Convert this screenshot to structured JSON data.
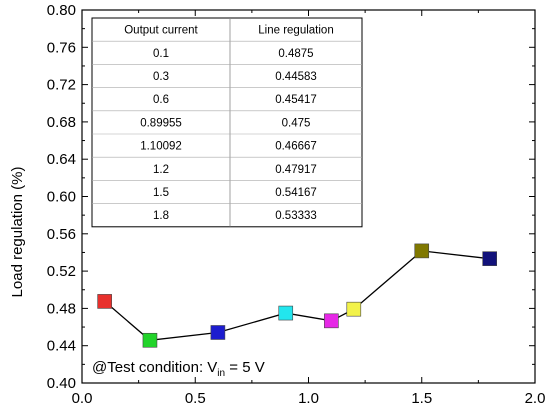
{
  "chart_data": {
    "type": "line",
    "xlabel": "",
    "ylabel": "Load regulation (%)",
    "xlim": [
      0.0,
      2.0
    ],
    "ylim": [
      0.4,
      0.8
    ],
    "x_ticks": [
      "0.0",
      "0.5",
      "1.0",
      "1.5",
      "2.0"
    ],
    "y_ticks": [
      "0.40",
      "0.44",
      "0.48",
      "0.52",
      "0.56",
      "0.60",
      "0.64",
      "0.68",
      "0.72",
      "0.76",
      "0.80"
    ],
    "grid": false,
    "series": [
      {
        "x": [
          0.1,
          0.3,
          0.6,
          0.89955,
          1.10092,
          1.2,
          1.5,
          1.8
        ],
        "y": [
          0.4875,
          0.44583,
          0.45417,
          0.475,
          0.46667,
          0.47917,
          0.54167,
          0.53333
        ],
        "marker_colors": [
          "#e8302c",
          "#22d42a",
          "#1c1ccf",
          "#22e6ee",
          "#e628e6",
          "#f2f24a",
          "#807800",
          "#12127a"
        ],
        "line_color": "#000000"
      }
    ],
    "table": {
      "headers": [
        "Output current",
        "Line regulation"
      ],
      "rows": [
        [
          "0.1",
          "0.4875"
        ],
        [
          "0.3",
          "0.44583"
        ],
        [
          "0.6",
          "0.45417"
        ],
        [
          "0.89955",
          "0.475"
        ],
        [
          "1.10092",
          "0.46667"
        ],
        [
          "1.2",
          "0.47917"
        ],
        [
          "1.5",
          "0.54167"
        ],
        [
          "1.8",
          "0.53333"
        ]
      ]
    },
    "annotation": {
      "prefix": "@Test condition: V",
      "subscript": "in",
      "suffix": " = 5 V"
    }
  }
}
